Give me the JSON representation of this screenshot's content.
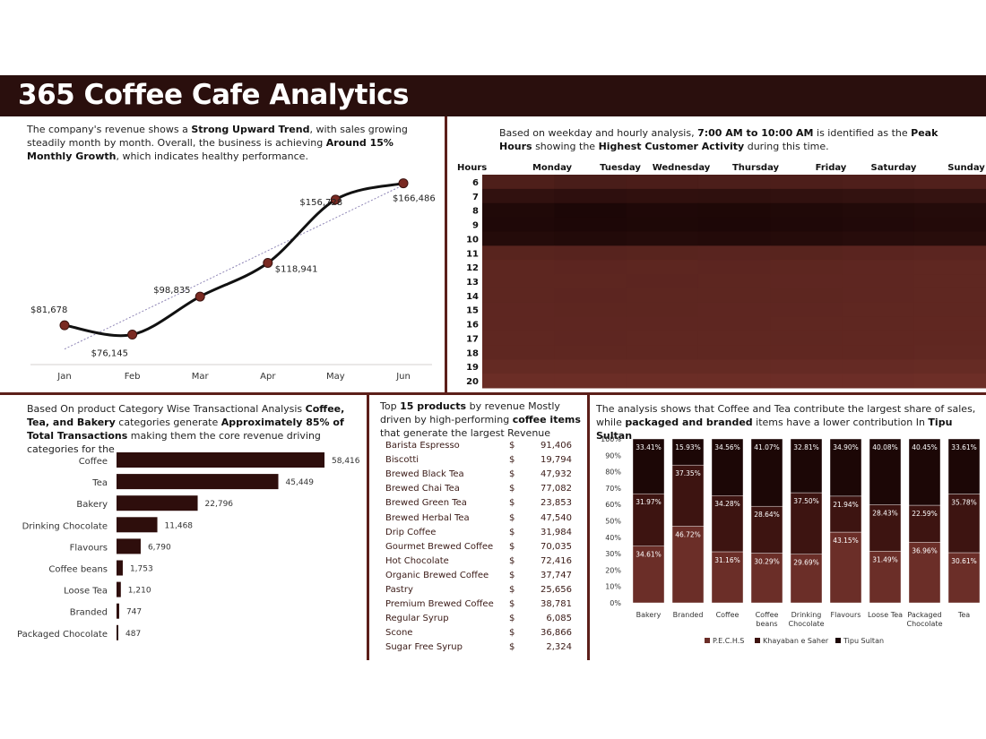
{
  "title": "365 Coffee Cafe Analytics",
  "panels": {
    "trend": {
      "text": [
        {
          "t": "The company's revenue shows a ",
          "b": false
        },
        {
          "t": "Strong Upward Trend",
          "b": true
        },
        {
          "t": ", with sales growing steadily month by month. Overall, the business is achieving ",
          "b": false
        },
        {
          "t": "Around 15% Monthly Growth",
          "b": true
        },
        {
          "t": ", which indicates healthy performance.",
          "b": false
        }
      ]
    },
    "heatmap": {
      "text": [
        {
          "t": "Based on weekday and hourly analysis, ",
          "b": false
        },
        {
          "t": "7:00 AM to 10:00 AM",
          "b": true
        },
        {
          "t": " is identified as the ",
          "b": false
        },
        {
          "t": "Peak Hours",
          "b": true
        },
        {
          "t": " showing the ",
          "b": false
        },
        {
          "t": "Highest Customer Activity",
          "b": true
        },
        {
          "t": " during this time.",
          "b": false
        }
      ]
    },
    "category": {
      "text": [
        {
          "t": "Based On product Category Wise Transactional Analysis ",
          "b": false
        },
        {
          "t": "Coffee, Tea, and Bakery",
          "b": true
        },
        {
          "t": " categories generate ",
          "b": false
        },
        {
          "t": "Approximately 85% of Total Transactions",
          "b": true
        },
        {
          "t": " making them the core revenue driving categories for the",
          "b": false
        }
      ]
    },
    "products": {
      "text": [
        {
          "t": "Top ",
          "b": false
        },
        {
          "t": "15 products",
          "b": true
        },
        {
          "t": " by revenue Mostly driven by high-performing ",
          "b": false
        },
        {
          "t": "coffee items",
          "b": true
        },
        {
          "t": " that generate the largest Revenue",
          "b": false
        }
      ],
      "currency": "$",
      "rows": [
        {
          "name": "Barista Espresso",
          "value": "91,406"
        },
        {
          "name": "Biscotti",
          "value": "19,794"
        },
        {
          "name": "Brewed Black Tea",
          "value": "47,932"
        },
        {
          "name": "Brewed Chai Tea",
          "value": "77,082"
        },
        {
          "name": "Brewed Green Tea",
          "value": "23,853"
        },
        {
          "name": "Brewed Herbal Tea",
          "value": "47,540"
        },
        {
          "name": "Drip Coffee",
          "value": "31,984"
        },
        {
          "name": "Gourmet Brewed Coffee",
          "value": "70,035"
        },
        {
          "name": "Hot Chocolate",
          "value": "72,416"
        },
        {
          "name": "Organic Brewed Coffee",
          "value": "37,747"
        },
        {
          "name": "Pastry",
          "value": "25,656"
        },
        {
          "name": "Premium Brewed Coffee",
          "value": "38,781"
        },
        {
          "name": "Regular Syrup",
          "value": "6,085"
        },
        {
          "name": "Scone",
          "value": "36,866"
        },
        {
          "name": "Sugar Free Syrup",
          "value": "2,324"
        }
      ]
    },
    "stores": {
      "text": [
        {
          "t": "The analysis shows that Coffee and Tea contribute the largest share of sales, while ",
          "b": false
        },
        {
          "t": "packaged and branded",
          "b": true
        },
        {
          "t": " items have a lower contribution In ",
          "b": false
        },
        {
          "t": "Tipu Sultan",
          "b": true
        }
      ]
    }
  },
  "colors": {
    "dark": "#2a0f0d",
    "accent": "#5c1f1a",
    "bar": "#2e0e0c",
    "pechs": "#6b2e28",
    "khayaban": "#3d1411",
    "tipu": "#1c0706",
    "point": "#7a2a22"
  },
  "chart_data": [
    {
      "type": "line",
      "categories": [
        "Jan",
        "Feb",
        "Mar",
        "Apr",
        "May",
        "Jun"
      ],
      "values": [
        81678,
        76145,
        98835,
        118941,
        156728,
        166486
      ],
      "labels": [
        "$81,678",
        "$76,145",
        "$98,835",
        "$118,941",
        "$156,728",
        "$166,486"
      ],
      "trendline": true,
      "ylim": [
        70000,
        170000
      ]
    },
    {
      "type": "heatmap",
      "corner_label": "Hours",
      "x": [
        "Monday",
        "Tuesday",
        "Wednesday",
        "Thursday",
        "Friday",
        "Saturday",
        "Sunday"
      ],
      "y": [
        6,
        7,
        8,
        9,
        10,
        11,
        12,
        13,
        14,
        15,
        16,
        17,
        18,
        19,
        20
      ],
      "values": [
        [
          0.45,
          0.5,
          0.48,
          0.47,
          0.46,
          0.44,
          0.42
        ],
        [
          0.75,
          0.78,
          0.76,
          0.77,
          0.74,
          0.72,
          0.7
        ],
        [
          0.92,
          0.96,
          0.93,
          0.94,
          0.92,
          0.9,
          0.88
        ],
        [
          0.93,
          0.95,
          0.94,
          0.95,
          0.93,
          0.91,
          0.89
        ],
        [
          0.88,
          0.9,
          0.88,
          0.89,
          0.87,
          0.85,
          0.84
        ],
        [
          0.35,
          0.36,
          0.35,
          0.34,
          0.35,
          0.33,
          0.32
        ],
        [
          0.3,
          0.31,
          0.3,
          0.31,
          0.3,
          0.29,
          0.28
        ],
        [
          0.3,
          0.3,
          0.31,
          0.3,
          0.29,
          0.29,
          0.28
        ],
        [
          0.3,
          0.31,
          0.3,
          0.3,
          0.3,
          0.29,
          0.28
        ],
        [
          0.29,
          0.3,
          0.3,
          0.29,
          0.29,
          0.28,
          0.28
        ],
        [
          0.29,
          0.29,
          0.29,
          0.29,
          0.28,
          0.28,
          0.27
        ],
        [
          0.28,
          0.29,
          0.28,
          0.28,
          0.28,
          0.27,
          0.27
        ],
        [
          0.28,
          0.28,
          0.28,
          0.28,
          0.27,
          0.27,
          0.26
        ],
        [
          0.22,
          0.22,
          0.22,
          0.22,
          0.21,
          0.21,
          0.2
        ],
        [
          0.15,
          0.15,
          0.15,
          0.15,
          0.14,
          0.14,
          0.13
        ]
      ]
    },
    {
      "type": "bar",
      "orientation": "horizontal",
      "categories": [
        "Coffee",
        "Tea",
        "Bakery",
        "Drinking Chocolate",
        "Flavours",
        "Coffee beans",
        "Loose Tea",
        "Branded",
        "Packaged Chocolate"
      ],
      "values": [
        58416,
        45449,
        22796,
        11468,
        6790,
        1753,
        1210,
        747,
        487
      ],
      "labels": [
        "58,416",
        "45,449",
        "22,796",
        "11,468",
        "6,790",
        "1,753",
        "1,210",
        "747",
        "487"
      ]
    },
    {
      "type": "bar",
      "stacked": "percent",
      "categories": [
        "Bakery",
        "Branded",
        "Coffee",
        "Coffee beans",
        "Drinking Chocolate",
        "Flavours",
        "Loose Tea",
        "Packaged Chocolate",
        "Tea"
      ],
      "series": [
        {
          "name": "P.E.C.H.S",
          "values": [
            34.61,
            46.72,
            31.16,
            30.29,
            29.69,
            43.15,
            31.49,
            36.96,
            30.61
          ],
          "labels": [
            "34.61%",
            "46.72%",
            "31.16%",
            "30.29%",
            "29.69%",
            "43.15%",
            "31.49%",
            "36.96%",
            "30.61%"
          ]
        },
        {
          "name": "Khayaban e Saher",
          "values": [
            31.97,
            37.35,
            34.28,
            28.64,
            37.5,
            21.94,
            28.43,
            22.59,
            35.78
          ],
          "labels": [
            "31.97%",
            "37.35%",
            "34.28%",
            "28.64%",
            "37.50%",
            "21.94%",
            "28.43%",
            "22.59%",
            "35.78%"
          ]
        },
        {
          "name": "Tipu Sultan",
          "values": [
            33.41,
            15.93,
            34.56,
            41.07,
            32.81,
            34.9,
            40.08,
            40.45,
            33.61
          ],
          "labels": [
            "33.41%",
            "15.93%",
            "34.56%",
            "41.07%",
            "32.81%",
            "34.90%",
            "40.08%",
            "40.45%",
            "33.61%"
          ]
        }
      ],
      "y_ticks": [
        "0%",
        "10%",
        "20%",
        "30%",
        "40%",
        "50%",
        "60%",
        "70%",
        "80%",
        "90%",
        "100%"
      ],
      "ylim": [
        0,
        100
      ],
      "legend": "bottom"
    }
  ]
}
